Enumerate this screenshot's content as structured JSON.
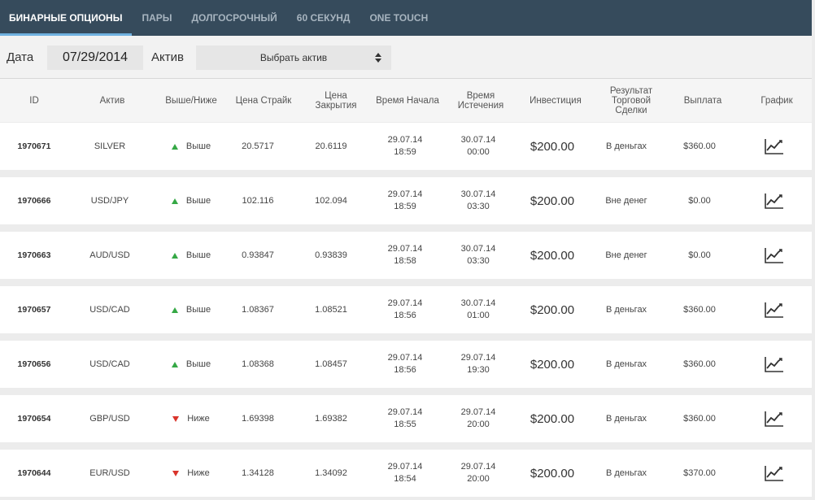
{
  "tabs": [
    {
      "label": "Бинарные опционы",
      "active": true
    },
    {
      "label": "Пары",
      "active": false
    },
    {
      "label": "Долгосрочный",
      "active": false
    },
    {
      "label": "60 секунд",
      "active": false
    },
    {
      "label": "One Touch",
      "active": false
    }
  ],
  "filter": {
    "date_label": "Дата",
    "date_value": "07/29/2014",
    "asset_label": "Актив",
    "asset_select": "Выбрать актив"
  },
  "columns": {
    "id": "ID",
    "asset": "Актив",
    "direction": "Выше/Ниже",
    "strike": "Цена Страйк",
    "close": "Цена Закрытия",
    "start": "Время Начала",
    "expiry": "Время Истечения",
    "investment": "Инвестиция",
    "result": "Результат Торговой Сделки",
    "payout": "Выплата",
    "chart": "График"
  },
  "colors": {
    "up": "#35a845",
    "down": "#d9342b",
    "accent": "#6fb1e0",
    "header_bg": "#364b5c"
  },
  "rows": [
    {
      "id": "1970671",
      "asset": "SILVER",
      "dir": "up",
      "dir_label": "Выше",
      "strike": "20.5717",
      "close": "20.6119",
      "start_date": "29.07.14",
      "start_time": "18:59",
      "exp_date": "30.07.14",
      "exp_time": "00:00",
      "investment": "$200.00",
      "result": "В деньгах",
      "payout": "$360.00",
      "chart_icon": "chart-line-icon"
    },
    {
      "id": "1970666",
      "asset": "USD/JPY",
      "dir": "up",
      "dir_label": "Выше",
      "strike": "102.116",
      "close": "102.094",
      "start_date": "29.07.14",
      "start_time": "18:59",
      "exp_date": "30.07.14",
      "exp_time": "03:30",
      "investment": "$200.00",
      "result": "Вне денег",
      "payout": "$0.00",
      "chart_icon": "chart-line-icon"
    },
    {
      "id": "1970663",
      "asset": "AUD/USD",
      "dir": "up",
      "dir_label": "Выше",
      "strike": "0.93847",
      "close": "0.93839",
      "start_date": "29.07.14",
      "start_time": "18:58",
      "exp_date": "30.07.14",
      "exp_time": "03:30",
      "investment": "$200.00",
      "result": "Вне денег",
      "payout": "$0.00",
      "chart_icon": "chart-line-icon"
    },
    {
      "id": "1970657",
      "asset": "USD/CAD",
      "dir": "up",
      "dir_label": "Выше",
      "strike": "1.08367",
      "close": "1.08521",
      "start_date": "29.07.14",
      "start_time": "18:56",
      "exp_date": "30.07.14",
      "exp_time": "01:00",
      "investment": "$200.00",
      "result": "В деньгах",
      "payout": "$360.00",
      "chart_icon": "chart-line-icon"
    },
    {
      "id": "1970656",
      "asset": "USD/CAD",
      "dir": "up",
      "dir_label": "Выше",
      "strike": "1.08368",
      "close": "1.08457",
      "start_date": "29.07.14",
      "start_time": "18:56",
      "exp_date": "29.07.14",
      "exp_time": "19:30",
      "investment": "$200.00",
      "result": "В деньгах",
      "payout": "$360.00",
      "chart_icon": "chart-line-icon"
    },
    {
      "id": "1970654",
      "asset": "GBP/USD",
      "dir": "down",
      "dir_label": "Ниже",
      "strike": "1.69398",
      "close": "1.69382",
      "start_date": "29.07.14",
      "start_time": "18:55",
      "exp_date": "29.07.14",
      "exp_time": "20:00",
      "investment": "$200.00",
      "result": "В деньгах",
      "payout": "$360.00",
      "chart_icon": "chart-line-icon"
    },
    {
      "id": "1970644",
      "asset": "EUR/USD",
      "dir": "down",
      "dir_label": "Ниже",
      "strike": "1.34128",
      "close": "1.34092",
      "start_date": "29.07.14",
      "start_time": "18:54",
      "exp_date": "29.07.14",
      "exp_time": "20:00",
      "investment": "$200.00",
      "result": "В деньгах",
      "payout": "$370.00",
      "chart_icon": "chart-line-icon"
    }
  ]
}
